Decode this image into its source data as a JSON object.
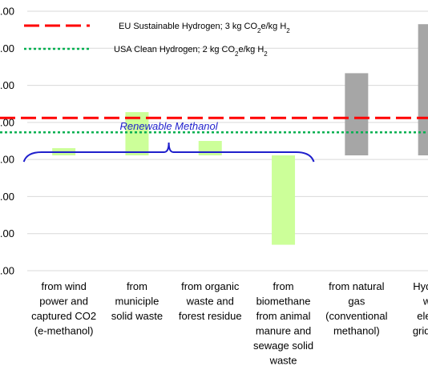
{
  "chart_data": {
    "type": "bar",
    "categories": [
      [
        "from wind",
        "power and",
        "captured CO2",
        "(e-methanol)"
      ],
      [
        "from",
        "municiple",
        "solid waste"
      ],
      [
        "from organic",
        "waste and",
        "forest residue"
      ],
      [
        "from",
        "biomethane",
        "from animal",
        "manure and",
        "sewage solid",
        "waste"
      ],
      [
        "from natural",
        "gas",
        "(conventional",
        "methanol)"
      ],
      [
        "Hydrog",
        "wa",
        "electr",
        "grid ele"
      ]
    ],
    "values": [
      0.25,
      1.5,
      0.5,
      -3.1,
      2.85,
      4.55
    ],
    "bar_colors": [
      "#ccff99",
      "#ccff99",
      "#ccff99",
      "#ccff99",
      "#a6a6a6",
      "#a6a6a6"
    ],
    "y_tick_labels": [
      ".00",
      ".00",
      ".00",
      ".00",
      ".00",
      ".00",
      ".00",
      ".00"
    ],
    "ylim": [
      -4,
      5
    ],
    "grid": true,
    "reference_lines": [
      {
        "name": "EU Sustainable Hydrogen; 3 kg CO₂e/kg H₂",
        "value": 1.3,
        "color": "#ff0000",
        "style": "dashed"
      },
      {
        "name": "USA Clean Hydrogen; 2 kg CO₂e/kg H₂",
        "value": 0.8,
        "color": "#00b050",
        "style": "dotted"
      }
    ],
    "legend": {
      "entries": [
        {
          "text": "EU Sustainable Hydrogen; 3 kg CO",
          "sub1": "2",
          "mid": "e/kg H",
          "sub2": "2"
        },
        {
          "text": "USA Clean Hydrogen; 2 kg CO",
          "sub1": "2",
          "mid": "e/kg H",
          "sub2": "2"
        }
      ],
      "placement": "top-left"
    },
    "annotation": {
      "text": "Renewable Methanol",
      "color": "#1f1fcc",
      "spans_categories": [
        0,
        3
      ]
    }
  }
}
